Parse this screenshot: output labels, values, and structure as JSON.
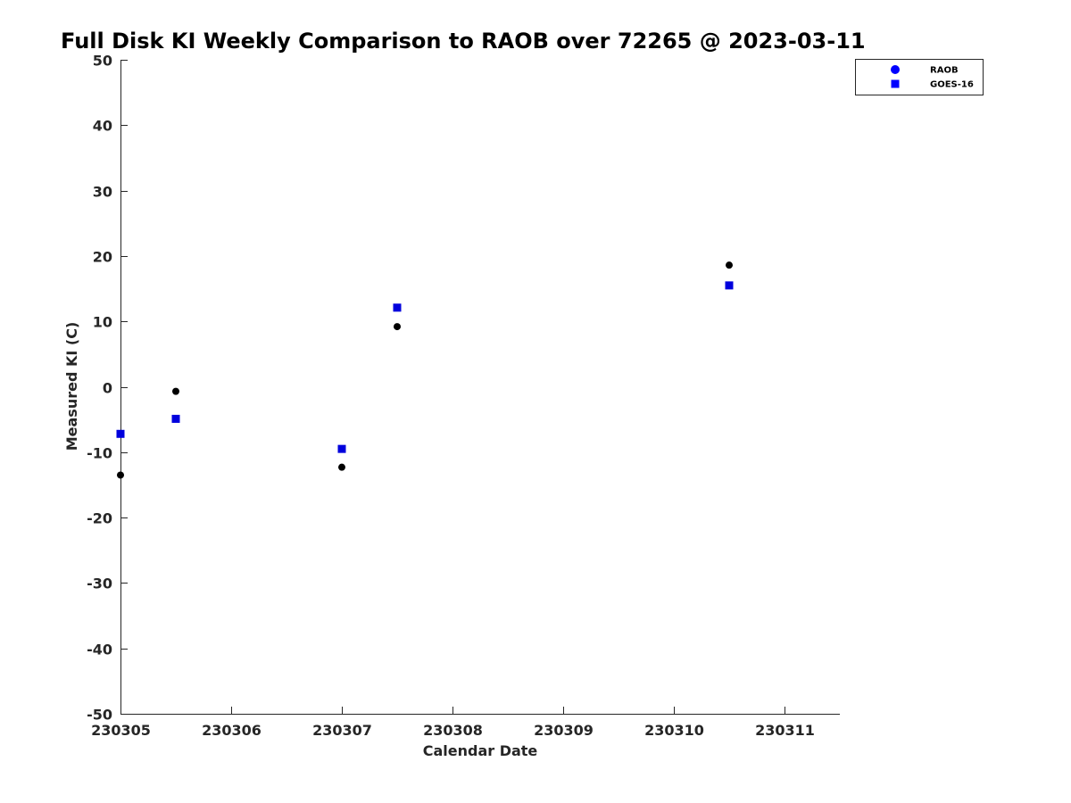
{
  "chart_data": {
    "type": "scatter",
    "title": "Full Disk KI Weekly Comparison to RAOB over 72265 @ 2023-03-11",
    "xlabel": "Calendar Date",
    "ylabel": "Measured KI (C)",
    "xlim": [
      230305,
      230311.5
    ],
    "ylim": [
      -50,
      50
    ],
    "xticks": [
      230305,
      230306,
      230307,
      230308,
      230309,
      230310,
      230311
    ],
    "xtick_labels": [
      "230305",
      "230306",
      "230307",
      "230308",
      "230309",
      "230310",
      "230311"
    ],
    "yticks": [
      -50,
      -40,
      -30,
      -20,
      -10,
      0,
      10,
      20,
      30,
      40,
      50
    ],
    "ytick_labels": [
      "-50",
      "-40",
      "-30",
      "-20",
      "-10",
      "0",
      "10",
      "20",
      "30",
      "40",
      "50"
    ],
    "grid": false,
    "legend_position": "top-right",
    "series": [
      {
        "name": "RAOB",
        "marker": "circle",
        "color": "#000000",
        "legend_color": "#0000ff",
        "x": [
          230305,
          230305.5,
          230307,
          230307.5,
          230310.5
        ],
        "y": [
          -13.5,
          -0.7,
          -12.3,
          9.2,
          18.6
        ]
      },
      {
        "name": "GOES-16",
        "marker": "square",
        "color": "#0000dd",
        "legend_color": "#0000ff",
        "x": [
          230305,
          230305.5,
          230307,
          230307.5,
          230310.5
        ],
        "y": [
          -7.2,
          -4.9,
          -9.5,
          12.1,
          15.5
        ]
      }
    ]
  }
}
